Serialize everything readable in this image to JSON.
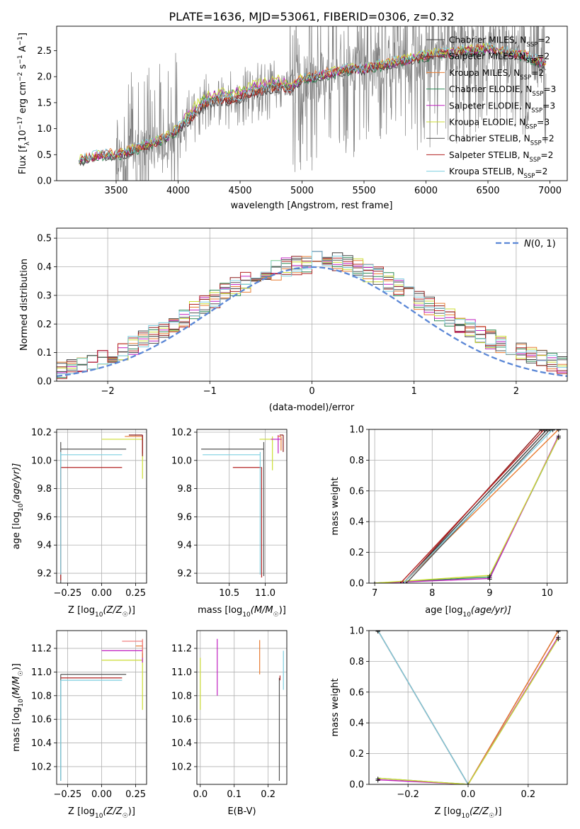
{
  "figure": {
    "title": "PLATE=1636, MJD=53061, FIBERID=0306, z=0.32"
  },
  "colors": [
    "#3b3b3b",
    "#8b1a1a",
    "#e87d33",
    "#2e8b57",
    "#c020c0",
    "#ccdd33",
    "#555555",
    "#b22222",
    "#7ecfe0"
  ],
  "chart_data": [
    {
      "type": "line",
      "title": "PLATE=1636, MJD=53061, FIBERID=0306, z=0.32",
      "xlabel": "wavelength [Angstrom, rest frame]",
      "ylabel": "Flux [f_λ 10^-17 erg cm^-2 s^-1 A^-1]",
      "ylabel_parts": {
        "main": "Flux [f",
        "sub": "λ",
        "a": "10",
        "s1": "−17",
        "b": " erg cm",
        "s2": "−2",
        "c": " s",
        "s3": "−1",
        "d": " A",
        "s4": "−1",
        "e": "]"
      },
      "xlim": [
        3020,
        7140
      ],
      "ylim": [
        0,
        2.97
      ],
      "xticks": [
        3500,
        4000,
        4500,
        5000,
        5500,
        6000,
        6500,
        7000
      ],
      "yticks": [
        0.0,
        0.5,
        1.0,
        1.5,
        2.0,
        2.5
      ],
      "legend_position": "top-right",
      "series": [
        {
          "name": "Chabrier MILES, N_SSP=2",
          "name_main": "Chabrier MILES, N",
          "name_sub": "SSP",
          "name_tail": "=2",
          "color": "#3b3b3b"
        },
        {
          "name": "Salpeter MILES, N_SSP=2",
          "name_main": "Salpeter MILES, N",
          "name_sub": "SSP",
          "name_tail": "=2",
          "color": "#8b1a1a"
        },
        {
          "name": "Kroupa MILES, N_SSP=2",
          "name_main": "Kroupa MILES, N",
          "name_sub": "SSP",
          "name_tail": "=2",
          "color": "#e87d33"
        },
        {
          "name": "Chabrier ELODIE, N_SSP=3",
          "name_main": "Chabrier ELODIE, N",
          "name_sub": "SSP",
          "name_tail": "=3",
          "color": "#2e8b57"
        },
        {
          "name": "Salpeter ELODIE, N_SSP=3",
          "name_main": "Salpeter ELODIE, N",
          "name_sub": "SSP",
          "name_tail": "=3",
          "color": "#c020c0"
        },
        {
          "name": "Kroupa ELODIE, N_SSP=3",
          "name_main": "Kroupa ELODIE, N",
          "name_sub": "SSP",
          "name_tail": "=3",
          "color": "#ccdd33"
        },
        {
          "name": "Chabrier STELIB, N_SSP=2",
          "name_main": "Chabrier STELIB, N",
          "name_sub": "SSP",
          "name_tail": "=2",
          "color": "#555555"
        },
        {
          "name": "Salpeter STELIB, N_SSP=2",
          "name_main": "Salpeter STELIB, N",
          "name_sub": "SSP",
          "name_tail": "=2",
          "color": "#b22222"
        },
        {
          "name": "Kroupa STELIB, N_SSP=2",
          "name_main": "Kroupa STELIB, N",
          "name_sub": "SSP",
          "name_tail": "=2",
          "color": "#7ecfe0"
        }
      ],
      "continuum": {
        "x": [
          3200,
          3300,
          3400,
          3500,
          3600,
          3700,
          3800,
          3900,
          4000,
          4100,
          4200,
          4300,
          4400,
          4500,
          4600,
          4700,
          4800,
          4900,
          5000,
          5100,
          5200,
          5300,
          5400,
          5500,
          5600,
          5700,
          5800,
          5900,
          6000,
          6100,
          6200,
          6300,
          6400,
          6500,
          6600,
          6700,
          6800,
          6900,
          6970
        ],
        "y": [
          0.38,
          0.45,
          0.5,
          0.5,
          0.55,
          0.65,
          0.72,
          0.82,
          1.0,
          1.2,
          1.45,
          1.55,
          1.55,
          1.6,
          1.7,
          1.75,
          1.8,
          1.75,
          1.95,
          2.0,
          2.05,
          2.1,
          2.15,
          2.15,
          2.2,
          2.25,
          2.3,
          2.35,
          2.4,
          2.45,
          2.45,
          2.5,
          2.5,
          2.55,
          2.5,
          2.45,
          2.4,
          2.3,
          2.25
        ]
      },
      "observed": {
        "x_range": [
          3200,
          6970
        ],
        "noise_start": 3500
      }
    },
    {
      "type": "histogram",
      "xlabel": "(data-model)/error",
      "ylabel": "Normed distribution",
      "xlim": [
        -2.5,
        2.5
      ],
      "ylim": [
        0,
        0.535
      ],
      "xticks": [
        -2,
        -1,
        0,
        1,
        2
      ],
      "xtick_labels": [
        "−2",
        "−1",
        "0",
        "1",
        "2"
      ],
      "yticks": [
        0.0,
        0.1,
        0.2,
        0.3,
        0.4,
        0.5
      ],
      "bins": {
        "start": -2.5,
        "width": 0.1,
        "count": 50
      },
      "reference": {
        "label": "N(0,1)",
        "label_script": "N",
        "label_tail": "(0, 1)",
        "mean": 0,
        "sigma": 1,
        "color": "#5b87d6",
        "style": "dashed"
      },
      "legend_position": "top-right"
    },
    {
      "type": "scatter",
      "xlabel": "Z [log10(Z/Z☉)]",
      "xlabel_parts": {
        "a": "Z [log",
        "s": "10",
        "b": "(Z/Z",
        "c": "☉",
        "d": ")]"
      },
      "ylabel": "age [log10(age/yr)]",
      "ylabel_parts": {
        "a": "age  [log",
        "s": "10",
        "b": "(age/yr)]"
      },
      "xlim": [
        -0.33,
        0.33
      ],
      "ylim": [
        9.13,
        10.22
      ],
      "xticks": [
        -0.25,
        0.0,
        0.25
      ],
      "xtick_labels": [
        "−0.25",
        "0.00",
        "0.25"
      ],
      "yticks": [
        9.2,
        9.4,
        9.6,
        9.8,
        10.0,
        10.2
      ],
      "points": [
        {
          "x": -0.3,
          "y": 10.08,
          "x_err": [
            0.0,
            0.48
          ],
          "y_err": [
            0.95,
            0.05
          ],
          "color": "#555555"
        },
        {
          "x": -0.3,
          "y": 9.95,
          "x_err": [
            0.0,
            0.45
          ],
          "y_err": [
            0.8,
            0.0
          ],
          "color": "#b22222"
        },
        {
          "x": -0.3,
          "y": 10.04,
          "x_err": [
            0.0,
            0.45
          ],
          "y_err": [
            0.85,
            0.02
          ],
          "color": "#7ecfe0"
        },
        {
          "x": 0.3,
          "y": 10.15,
          "x_err": [
            0.3,
            0.0
          ],
          "y_err": [
            0.28,
            0.02
          ],
          "color": "#ccdd33"
        },
        {
          "x": 0.3,
          "y": 10.15,
          "x_err": [
            0.0,
            0.0
          ],
          "y_err": [
            0.1,
            0.03
          ],
          "color": "#c020c0"
        },
        {
          "x": 0.3,
          "y": 10.17,
          "x_err": [
            0.13,
            0.0
          ],
          "y_err": [
            0.12,
            0.0
          ],
          "color": "#e87d33"
        },
        {
          "x": 0.3,
          "y": 10.18,
          "x_err": [
            0.1,
            0.0
          ],
          "y_err": [
            0.15,
            0.0
          ],
          "color": "#8b1a1a"
        }
      ]
    },
    {
      "type": "scatter",
      "xlabel": "mass [log10(M/M☉)]",
      "xlabel_parts": {
        "a": "mass [log",
        "s": "10",
        "b": "(M/M",
        "c": "☉",
        "d": ")]"
      },
      "xlim": [
        10.05,
        11.3
      ],
      "ylim": [
        9.13,
        10.22
      ],
      "xticks": [
        10.5,
        11.0
      ],
      "xtick_labels": [
        "10.5",
        "11.0"
      ],
      "yticks": [
        9.2,
        9.4,
        9.6,
        9.8,
        10.0,
        10.2
      ],
      "points": [
        {
          "x": 10.98,
          "y": 10.08,
          "x_err": [
            0.87,
            0.0
          ],
          "y_err": [
            0.9,
            0.05
          ],
          "color": "#555555"
        },
        {
          "x": 10.95,
          "y": 9.95,
          "x_err": [
            0.4,
            0.0
          ],
          "y_err": [
            0.78,
            0.0
          ],
          "color": "#b22222"
        },
        {
          "x": 10.93,
          "y": 10.04,
          "x_err": [
            0.8,
            0.0
          ],
          "y_err": [
            0.85,
            0.02
          ],
          "color": "#7ecfe0"
        },
        {
          "x": 11.1,
          "y": 10.15,
          "x_err": [
            0.18,
            0.0
          ],
          "y_err": [
            0.22,
            0.02
          ],
          "color": "#ccdd33"
        },
        {
          "x": 11.18,
          "y": 10.15,
          "x_err": [
            0.1,
            0.05
          ],
          "y_err": [
            0.1,
            0.03
          ],
          "color": "#c020c0"
        },
        {
          "x": 11.22,
          "y": 10.17,
          "x_err": [
            0.05,
            0.0
          ],
          "y_err": [
            0.1,
            0.0
          ],
          "color": "#e87d33"
        },
        {
          "x": 11.25,
          "y": 10.18,
          "x_err": [
            0.05,
            0.0
          ],
          "y_err": [
            0.12,
            0.0
          ],
          "color": "#8b1a1a"
        }
      ]
    },
    {
      "type": "line",
      "xlabel": "age [log10(age/yr)]",
      "xlabel_parts": {
        "a": "age  [log",
        "s": "10",
        "b": "(age/yr)]"
      },
      "ylabel": "mass weight",
      "xlim": [
        6.9,
        10.35
      ],
      "ylim": [
        0,
        1.0
      ],
      "xticks": [
        7,
        8,
        9,
        10
      ],
      "yticks": [
        0.0,
        0.2,
        0.4,
        0.6,
        0.8,
        1.0
      ],
      "series": [
        {
          "color": "#3b3b3b",
          "x": [
            7.5,
            10.0
          ],
          "y": [
            0.0,
            1.0
          ]
        },
        {
          "color": "#8b1a1a",
          "x": [
            7.5,
            9.9
          ],
          "y": [
            0.0,
            1.0
          ]
        },
        {
          "color": "#e87d33",
          "x": [
            7.5,
            10.2
          ],
          "y": [
            0.0,
            1.0
          ]
        },
        {
          "color": "#2e8b57",
          "x": [
            7.0,
            9.0,
            10.2
          ],
          "y": [
            0.0,
            0.04,
            0.95
          ]
        },
        {
          "color": "#c020c0",
          "x": [
            7.0,
            9.0,
            10.2
          ],
          "y": [
            0.0,
            0.03,
            0.96
          ]
        },
        {
          "color": "#ccdd33",
          "x": [
            7.0,
            9.0,
            10.2
          ],
          "y": [
            0.0,
            0.05,
            0.95
          ]
        },
        {
          "color": "#555555",
          "x": [
            7.55,
            10.05
          ],
          "y": [
            0.0,
            1.0
          ]
        },
        {
          "color": "#b22222",
          "x": [
            7.45,
            9.95
          ],
          "y": [
            0.0,
            1.0
          ]
        },
        {
          "color": "#7ecfe0",
          "x": [
            7.5,
            10.1
          ],
          "y": [
            0.0,
            1.0
          ]
        }
      ]
    },
    {
      "type": "scatter",
      "xlabel": "Z [log10(Z/Z☉)]",
      "xlabel_parts": {
        "a": "Z [log",
        "s": "10",
        "b": "(Z/Z",
        "c": "☉",
        "d": ")]"
      },
      "ylabel": "mass [log10(M/M☉)]",
      "ylabel_parts": {
        "a": "mass [log",
        "s": "10",
        "b": "(M/M",
        "c": "☉",
        "d": ")]"
      },
      "xlim": [
        -0.33,
        0.33
      ],
      "ylim": [
        10.05,
        11.35
      ],
      "xticks": [
        -0.25,
        0.0,
        0.25
      ],
      "xtick_labels": [
        "−0.25",
        "0.00",
        "0.25"
      ],
      "yticks": [
        10.2,
        10.4,
        10.6,
        10.8,
        11.0,
        11.2
      ],
      "points": [
        {
          "x": -0.3,
          "y": 10.98,
          "x_err": [
            0.0,
            0.48
          ],
          "y_err": [
            0.9,
            0.0
          ],
          "color": "#555555"
        },
        {
          "x": -0.3,
          "y": 10.95,
          "x_err": [
            0.0,
            0.45
          ],
          "y_err": [
            0.0,
            0.0
          ],
          "color": "#b22222"
        },
        {
          "x": -0.3,
          "y": 10.93,
          "x_err": [
            0.0,
            0.45
          ],
          "y_err": [
            0.85,
            0.0
          ],
          "color": "#7ecfe0"
        },
        {
          "x": 0.3,
          "y": 11.1,
          "x_err": [
            0.3,
            0.0
          ],
          "y_err": [
            0.42,
            0.1
          ],
          "color": "#ccdd33"
        },
        {
          "x": 0.3,
          "y": 11.18,
          "x_err": [
            0.3,
            0.0
          ],
          "y_err": [
            0.1,
            0.05
          ],
          "color": "#c020c0"
        },
        {
          "x": 0.3,
          "y": 11.22,
          "x_err": [
            0.05,
            0.0
          ],
          "y_err": [
            0.1,
            0.05
          ],
          "color": "#e87d33"
        },
        {
          "x": 0.3,
          "y": 11.26,
          "x_err": [
            0.15,
            0.0
          ],
          "y_err": [
            0.1,
            0.02
          ],
          "color": "#f08080"
        }
      ]
    },
    {
      "type": "scatter",
      "xlabel": "E(B-V)",
      "xlim": [
        -0.01,
        0.255
      ],
      "ylim": [
        10.05,
        11.35
      ],
      "xticks": [
        0.0,
        0.1,
        0.2
      ],
      "xtick_labels": [
        "0.0",
        "0.1",
        "0.2"
      ],
      "yticks": [
        10.2,
        10.4,
        10.6,
        10.8,
        11.0,
        11.2
      ],
      "points": [
        {
          "x": 0.0,
          "y": 10.9,
          "y_err": [
            0.22,
            0.22
          ],
          "color": "#ccdd33"
        },
        {
          "x": 0.05,
          "y": 11.05,
          "y_err": [
            0.25,
            0.23
          ],
          "color": "#c020c0"
        },
        {
          "x": 0.175,
          "y": 11.1,
          "y_err": [
            0.12,
            0.17
          ],
          "color": "#e87d33"
        },
        {
          "x": 0.233,
          "y": 10.5,
          "y_err": [
            0.42,
            0.45
          ],
          "color": "#555555"
        },
        {
          "x": 0.235,
          "y": 10.95,
          "y_err": [
            0.02,
            0.02
          ],
          "color": "#b22222"
        },
        {
          "x": 0.245,
          "y": 11.0,
          "y_err": [
            0.15,
            0.18
          ],
          "color": "#7ecfe0"
        }
      ]
    },
    {
      "type": "line",
      "xlabel": "Z [log10(Z/Z☉)]",
      "xlabel_parts": {
        "a": "Z [log",
        "s": "10",
        "b": "(Z/Z",
        "c": "☉",
        "d": ")]"
      },
      "ylabel": "mass weight",
      "xlim": [
        -0.33,
        0.33
      ],
      "ylim": [
        0,
        1.0
      ],
      "xticks": [
        -0.2,
        0.0,
        0.2
      ],
      "xtick_labels": [
        "−0.2",
        "0.0",
        "0.2"
      ],
      "yticks": [
        0.0,
        0.2,
        0.4,
        0.6,
        0.8,
        1.0
      ],
      "series": [
        {
          "color": "#3b3b3b",
          "x": [
            -0.3,
            0.0
          ],
          "y": [
            1.0,
            0.0
          ]
        },
        {
          "color": "#b22222",
          "x": [
            -0.3,
            0.0
          ],
          "y": [
            1.0,
            0.0
          ]
        },
        {
          "color": "#7ecfe0",
          "x": [
            -0.3,
            0.0
          ],
          "y": [
            1.0,
            0.0
          ]
        },
        {
          "color": "#8b1a1a",
          "x": [
            0.0,
            0.3
          ],
          "y": [
            0.0,
            1.0
          ]
        },
        {
          "color": "#e87d33",
          "x": [
            0.0,
            0.3
          ],
          "y": [
            0.0,
            1.0
          ]
        },
        {
          "color": "#2e8b57",
          "x": [
            -0.3,
            0.0,
            0.3
          ],
          "y": [
            0.04,
            0.0,
            0.95
          ]
        },
        {
          "color": "#c020c0",
          "x": [
            -0.3,
            0.0,
            0.3
          ],
          "y": [
            0.03,
            0.0,
            0.96
          ]
        },
        {
          "color": "#ccdd33",
          "x": [
            -0.3,
            0.0,
            0.3
          ],
          "y": [
            0.04,
            0.0,
            0.95
          ]
        }
      ]
    }
  ]
}
